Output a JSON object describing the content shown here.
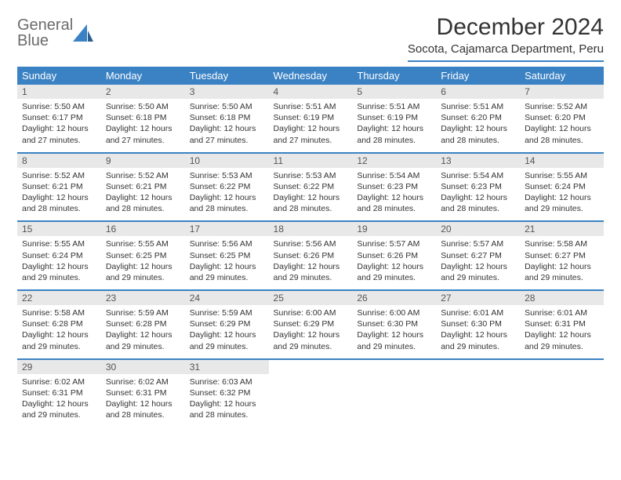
{
  "brand": {
    "line1": "General",
    "line2": "Blue"
  },
  "title": "December 2024",
  "location": "Socota, Cajamarca Department, Peru",
  "colors": {
    "accent": "#3b82c4",
    "header_bg": "#3b82c4",
    "header_fg": "#ffffff",
    "daynum_bg": "#e8e8e8"
  },
  "weekdays": [
    "Sunday",
    "Monday",
    "Tuesday",
    "Wednesday",
    "Thursday",
    "Friday",
    "Saturday"
  ],
  "weeks": [
    [
      {
        "n": "1",
        "sr": "5:50 AM",
        "ss": "6:17 PM",
        "dl": "12 hours and 27 minutes."
      },
      {
        "n": "2",
        "sr": "5:50 AM",
        "ss": "6:18 PM",
        "dl": "12 hours and 27 minutes."
      },
      {
        "n": "3",
        "sr": "5:50 AM",
        "ss": "6:18 PM",
        "dl": "12 hours and 27 minutes."
      },
      {
        "n": "4",
        "sr": "5:51 AM",
        "ss": "6:19 PM",
        "dl": "12 hours and 27 minutes."
      },
      {
        "n": "5",
        "sr": "5:51 AM",
        "ss": "6:19 PM",
        "dl": "12 hours and 28 minutes."
      },
      {
        "n": "6",
        "sr": "5:51 AM",
        "ss": "6:20 PM",
        "dl": "12 hours and 28 minutes."
      },
      {
        "n": "7",
        "sr": "5:52 AM",
        "ss": "6:20 PM",
        "dl": "12 hours and 28 minutes."
      }
    ],
    [
      {
        "n": "8",
        "sr": "5:52 AM",
        "ss": "6:21 PM",
        "dl": "12 hours and 28 minutes."
      },
      {
        "n": "9",
        "sr": "5:52 AM",
        "ss": "6:21 PM",
        "dl": "12 hours and 28 minutes."
      },
      {
        "n": "10",
        "sr": "5:53 AM",
        "ss": "6:22 PM",
        "dl": "12 hours and 28 minutes."
      },
      {
        "n": "11",
        "sr": "5:53 AM",
        "ss": "6:22 PM",
        "dl": "12 hours and 28 minutes."
      },
      {
        "n": "12",
        "sr": "5:54 AM",
        "ss": "6:23 PM",
        "dl": "12 hours and 28 minutes."
      },
      {
        "n": "13",
        "sr": "5:54 AM",
        "ss": "6:23 PM",
        "dl": "12 hours and 28 minutes."
      },
      {
        "n": "14",
        "sr": "5:55 AM",
        "ss": "6:24 PM",
        "dl": "12 hours and 29 minutes."
      }
    ],
    [
      {
        "n": "15",
        "sr": "5:55 AM",
        "ss": "6:24 PM",
        "dl": "12 hours and 29 minutes."
      },
      {
        "n": "16",
        "sr": "5:55 AM",
        "ss": "6:25 PM",
        "dl": "12 hours and 29 minutes."
      },
      {
        "n": "17",
        "sr": "5:56 AM",
        "ss": "6:25 PM",
        "dl": "12 hours and 29 minutes."
      },
      {
        "n": "18",
        "sr": "5:56 AM",
        "ss": "6:26 PM",
        "dl": "12 hours and 29 minutes."
      },
      {
        "n": "19",
        "sr": "5:57 AM",
        "ss": "6:26 PM",
        "dl": "12 hours and 29 minutes."
      },
      {
        "n": "20",
        "sr": "5:57 AM",
        "ss": "6:27 PM",
        "dl": "12 hours and 29 minutes."
      },
      {
        "n": "21",
        "sr": "5:58 AM",
        "ss": "6:27 PM",
        "dl": "12 hours and 29 minutes."
      }
    ],
    [
      {
        "n": "22",
        "sr": "5:58 AM",
        "ss": "6:28 PM",
        "dl": "12 hours and 29 minutes."
      },
      {
        "n": "23",
        "sr": "5:59 AM",
        "ss": "6:28 PM",
        "dl": "12 hours and 29 minutes."
      },
      {
        "n": "24",
        "sr": "5:59 AM",
        "ss": "6:29 PM",
        "dl": "12 hours and 29 minutes."
      },
      {
        "n": "25",
        "sr": "6:00 AM",
        "ss": "6:29 PM",
        "dl": "12 hours and 29 minutes."
      },
      {
        "n": "26",
        "sr": "6:00 AM",
        "ss": "6:30 PM",
        "dl": "12 hours and 29 minutes."
      },
      {
        "n": "27",
        "sr": "6:01 AM",
        "ss": "6:30 PM",
        "dl": "12 hours and 29 minutes."
      },
      {
        "n": "28",
        "sr": "6:01 AM",
        "ss": "6:31 PM",
        "dl": "12 hours and 29 minutes."
      }
    ],
    [
      {
        "n": "29",
        "sr": "6:02 AM",
        "ss": "6:31 PM",
        "dl": "12 hours and 29 minutes."
      },
      {
        "n": "30",
        "sr": "6:02 AM",
        "ss": "6:31 PM",
        "dl": "12 hours and 28 minutes."
      },
      {
        "n": "31",
        "sr": "6:03 AM",
        "ss": "6:32 PM",
        "dl": "12 hours and 28 minutes."
      },
      null,
      null,
      null,
      null
    ]
  ],
  "labels": {
    "sunrise": "Sunrise:",
    "sunset": "Sunset:",
    "daylight": "Daylight:"
  }
}
